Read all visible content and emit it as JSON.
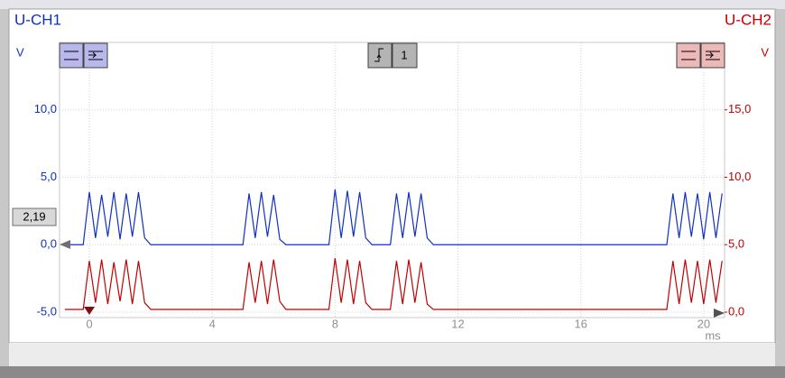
{
  "chart_data": {
    "type": "line",
    "x_label": "ms",
    "y_label": "V",
    "y2_label": "V",
    "cursor_label": "2,19",
    "trigger_label": "1",
    "x": [
      -0.8,
      -0.6,
      -0.4,
      -0.2,
      0,
      0.2,
      0.4,
      0.6,
      0.8,
      1,
      1.2,
      1.4,
      1.6,
      1.8,
      2,
      2.2,
      2.4,
      2.6,
      2.8,
      3,
      3.2,
      3.4,
      3.6,
      3.8,
      4,
      4.2,
      4.4,
      4.6,
      4.8,
      5,
      5.2,
      5.4,
      5.6,
      5.8,
      6,
      6.2,
      6.4,
      6.6,
      6.8,
      7,
      7.2,
      7.4,
      7.6,
      7.8,
      8,
      8.2,
      8.4,
      8.6,
      8.8,
      9,
      9.2,
      9.4,
      9.6,
      9.8,
      10,
      10.2,
      10.4,
      10.6,
      10.8,
      11,
      11.2,
      11.4,
      11.6,
      11.8,
      12,
      12.2,
      12.4,
      12.6,
      12.8,
      13,
      13.2,
      13.4,
      13.6,
      13.8,
      14,
      14.2,
      14.4,
      14.6,
      14.8,
      15,
      15.2,
      15.4,
      15.6,
      15.8,
      16,
      16.2,
      16.4,
      16.6,
      16.8,
      17,
      17.2,
      17.4,
      17.6,
      17.8,
      18,
      18.2,
      18.4,
      18.6,
      18.8,
      19,
      19.2,
      19.4,
      19.6,
      19.8,
      20,
      20.2,
      20.4,
      20.6
    ],
    "series": [
      {
        "name": "U-CH1",
        "color": "#1030c0",
        "axis": "y",
        "values": [
          0,
          0,
          0,
          0,
          3.9,
          0.5,
          3.7,
          0.6,
          3.9,
          0.4,
          3.8,
          0.6,
          3.9,
          0.5,
          0,
          0,
          0,
          0,
          0,
          0,
          0,
          0,
          0,
          0,
          0,
          0,
          0,
          0,
          0,
          0,
          3.8,
          0.5,
          3.9,
          0.6,
          3.7,
          0.4,
          0,
          0,
          0,
          0,
          0,
          0,
          0,
          0,
          4.1,
          0.5,
          4.0,
          0.6,
          3.9,
          0.5,
          0,
          0,
          0,
          0,
          3.8,
          0.5,
          3.9,
          0.6,
          3.8,
          0.5,
          0,
          0,
          0,
          0,
          0,
          0,
          0,
          0,
          0,
          0,
          0,
          0,
          0,
          0,
          0,
          0,
          0,
          0,
          0,
          0,
          0,
          0,
          0,
          0,
          0,
          0,
          0,
          0,
          0,
          0,
          0,
          0,
          0,
          0,
          0,
          0,
          0,
          0,
          0,
          3.8,
          0.5,
          3.9,
          0.6,
          3.8,
          0.4,
          3.9,
          0.5,
          3.8
        ]
      },
      {
        "name": "U-CH2",
        "color": "#c00000",
        "axis": "y2",
        "values": [
          0.2,
          0.2,
          0.2,
          0.2,
          3.8,
          0.7,
          3.9,
          0.6,
          3.7,
          0.8,
          3.9,
          0.6,
          3.8,
          0.7,
          0.2,
          0.2,
          0.2,
          0.2,
          0.2,
          0.2,
          0.2,
          0.2,
          0.2,
          0.2,
          0.2,
          0.2,
          0.2,
          0.2,
          0.2,
          0.2,
          3.7,
          0.7,
          3.8,
          0.6,
          3.9,
          0.8,
          0.2,
          0.2,
          0.2,
          0.2,
          0.2,
          0.2,
          0.2,
          0.2,
          4.0,
          0.7,
          3.9,
          0.6,
          3.8,
          0.7,
          0.2,
          0.2,
          0.2,
          0.2,
          3.8,
          0.6,
          3.9,
          0.7,
          3.7,
          0.6,
          0.2,
          0.2,
          0.2,
          0.2,
          0.2,
          0.2,
          0.2,
          0.2,
          0.2,
          0.2,
          0.2,
          0.2,
          0.2,
          0.2,
          0.2,
          0.2,
          0.2,
          0.2,
          0.2,
          0.2,
          0.2,
          0.2,
          0.2,
          0.2,
          0.2,
          0.2,
          0.2,
          0.2,
          0.2,
          0.2,
          0.2,
          0.2,
          0.2,
          0.2,
          0.2,
          0.2,
          0.2,
          0.2,
          0.2,
          3.8,
          0.6,
          3.9,
          0.7,
          3.8,
          0.6,
          3.9,
          0.7,
          3.8
        ]
      }
    ],
    "xlim": [
      -0.97,
      20.68
    ],
    "ylim": [
      -5.4,
      15
    ],
    "y2lim": [
      -0.4,
      20
    ],
    "xticks": [
      0,
      4,
      8,
      12,
      16,
      20
    ],
    "yticks": [
      {
        "value": -5,
        "label": "-5,0"
      },
      {
        "value": 0,
        "label": "0,0"
      },
      {
        "value": 5,
        "label": "5,0"
      },
      {
        "value": 10,
        "label": "10,0"
      }
    ],
    "y2ticks": [
      {
        "value": 0,
        "label": "0,0"
      },
      {
        "value": 5,
        "label": "5,0"
      },
      {
        "value": 10,
        "label": "10,0"
      },
      {
        "value": 15,
        "label": "15,0"
      }
    ],
    "grid": true
  }
}
